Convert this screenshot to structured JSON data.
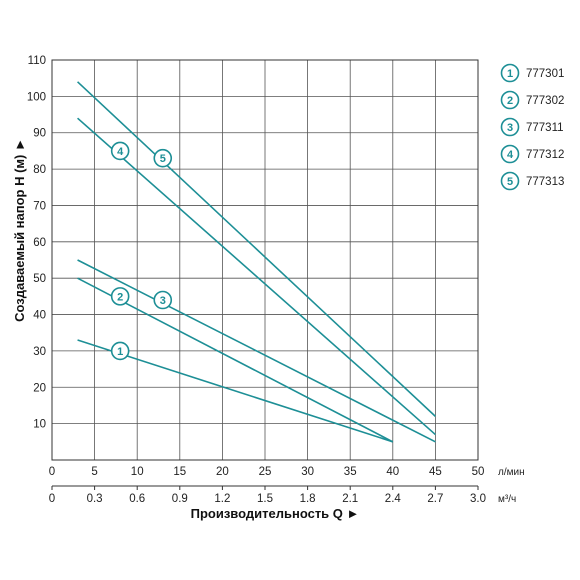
{
  "chart_data": {
    "type": "line",
    "xlabel": "Производительность Q ►",
    "ylabel": "Создаваемый напор H (м) ►",
    "xlim": [
      0,
      50
    ],
    "ylim": [
      0,
      110
    ],
    "x_ticks": [
      0,
      5,
      10,
      15,
      20,
      25,
      30,
      35,
      40,
      45,
      50
    ],
    "x_unit": "л/мин",
    "x2_ticks": [
      "0",
      "0.3",
      "0.6",
      "0.9",
      "1.2",
      "1.5",
      "1.8",
      "2.1",
      "2.4",
      "2.7",
      "3.0"
    ],
    "x2_unit": "м³/ч",
    "y_ticks": [
      10,
      20,
      30,
      40,
      50,
      60,
      70,
      80,
      90,
      100,
      110
    ],
    "grid": true,
    "legend_position": "right",
    "line_color": "#1d8f96",
    "series": [
      {
        "name": "777301",
        "marker": "1",
        "x": [
          3,
          40
        ],
        "y": [
          33,
          5
        ],
        "marker_at": [
          8,
          30
        ]
      },
      {
        "name": "777302",
        "marker": "2",
        "x": [
          3,
          40
        ],
        "y": [
          50,
          5
        ],
        "marker_at": [
          8,
          45
        ]
      },
      {
        "name": "777311",
        "marker": "3",
        "x": [
          3,
          45
        ],
        "y": [
          55,
          5
        ],
        "marker_at": [
          13,
          44
        ]
      },
      {
        "name": "777312",
        "marker": "4",
        "x": [
          3,
          45
        ],
        "y": [
          94,
          7
        ],
        "marker_at": [
          8,
          85
        ]
      },
      {
        "name": "777313",
        "marker": "5",
        "x": [
          3,
          45
        ],
        "y": [
          104,
          12
        ],
        "marker_at": [
          13,
          83
        ]
      }
    ]
  }
}
